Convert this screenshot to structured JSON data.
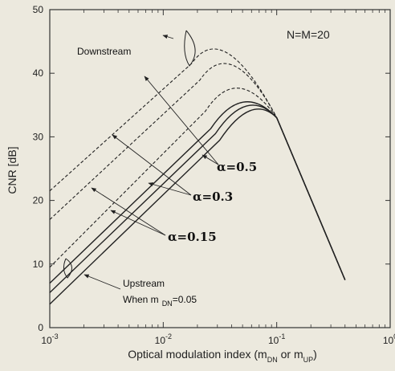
{
  "chart_data": {
    "type": "line",
    "xscale": "log",
    "xlim": [
      0.001,
      1
    ],
    "ylim": [
      0,
      50
    ],
    "xticks": [
      {
        "v": 0.001,
        "base": "10",
        "exp": "-3"
      },
      {
        "v": 0.01,
        "base": "10",
        "exp": "-2"
      },
      {
        "v": 0.1,
        "base": "10",
        "exp": "-1"
      },
      {
        "v": 1,
        "base": "10",
        "exp": "0"
      }
    ],
    "yticks": [
      "0",
      "10",
      "20",
      "30",
      "40",
      "50"
    ],
    "xlabel": {
      "main": "Optical modulation index (m",
      "sub1": "DN",
      "mid": " or m",
      "sub2": "UP",
      "end": ")"
    },
    "ylabel": "CNR  [dB]",
    "annotation_nm": "N=M=20",
    "label_downstream": "Downstream",
    "label_upstream": "Upstream",
    "label_when": {
      "main": "When m",
      "sub": "DN",
      "end": "=0.05"
    },
    "alpha_labels": [
      "α=0.5",
      "α=0.3",
      "α=0.15"
    ],
    "series": [
      {
        "group": "downstream",
        "style": "dashed",
        "points": [
          [
            0.001,
            21.5
          ],
          [
            0.034,
            48.0
          ],
          [
            0.1,
            33.0
          ],
          [
            0.4,
            7.5
          ]
        ]
      },
      {
        "group": "downstream",
        "style": "dashed",
        "points": [
          [
            0.001,
            17.0
          ],
          [
            0.04,
            45.5
          ],
          [
            0.1,
            33.0
          ],
          [
            0.4,
            7.5
          ]
        ]
      },
      {
        "group": "downstream",
        "style": "dashed",
        "points": [
          [
            0.001,
            9.5
          ],
          [
            0.045,
            41.0
          ],
          [
            0.1,
            33.0
          ],
          [
            0.4,
            7.5
          ]
        ]
      },
      {
        "group": "upstream",
        "style": "solid",
        "points": [
          [
            0.001,
            7.0
          ],
          [
            0.05,
            38.0
          ],
          [
            0.1,
            33.0
          ],
          [
            0.4,
            7.5
          ]
        ]
      },
      {
        "group": "upstream",
        "style": "solid",
        "points": [
          [
            0.001,
            5.5
          ],
          [
            0.055,
            37.2
          ],
          [
            0.1,
            33.0
          ],
          [
            0.4,
            7.5
          ]
        ]
      },
      {
        "group": "upstream",
        "style": "solid",
        "points": [
          [
            0.001,
            3.7
          ],
          [
            0.06,
            36.2
          ],
          [
            0.1,
            33.0
          ],
          [
            0.4,
            7.5
          ]
        ]
      }
    ]
  }
}
